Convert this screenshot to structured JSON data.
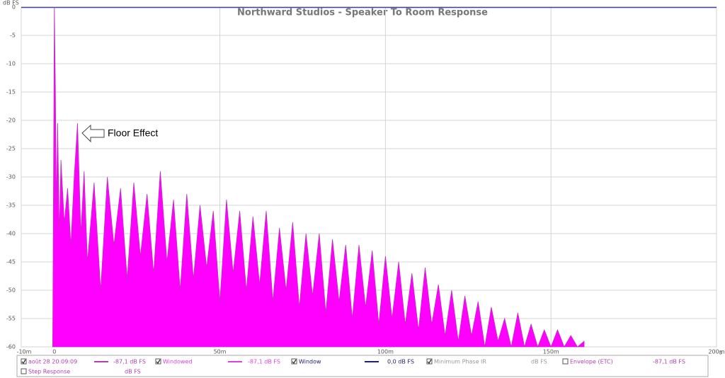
{
  "chart_data": {
    "type": "area",
    "title": "Northward Studios - Speaker To Room Response",
    "y_label": "dB FS",
    "x_unit": "s",
    "annotation": "Floor Effect",
    "color": "#ff00ff",
    "grid": true,
    "xlim": [
      -10,
      200
    ],
    "ylim": [
      -60,
      0
    ],
    "xticks": [
      {
        "value": -10,
        "label": "-10m"
      },
      0,
      {
        "value": 50,
        "label": "50m"
      },
      {
        "value": 100,
        "label": "100m"
      },
      {
        "value": 150,
        "label": "150m"
      },
      {
        "value": 200,
        "label": "200m"
      }
    ],
    "yticks": [
      0,
      -5,
      -10,
      -15,
      -20,
      -25,
      -30,
      -35,
      -40,
      -45,
      -50,
      -55,
      -60
    ],
    "x": [
      -0.5,
      0,
      0.3,
      0.6,
      1,
      1.5,
      2,
      3,
      4,
      5,
      6,
      7,
      8,
      9,
      10,
      12,
      14,
      16,
      18,
      20,
      22,
      24,
      26,
      28,
      30,
      32,
      34,
      36,
      38,
      40,
      42,
      44,
      46,
      48,
      50,
      52,
      54,
      56,
      58,
      60,
      62,
      64,
      66,
      68,
      70,
      72,
      74,
      76,
      78,
      80,
      82,
      84,
      86,
      88,
      90,
      92,
      94,
      96,
      98,
      100,
      102,
      104,
      106,
      108,
      110,
      112,
      114,
      116,
      118,
      120,
      122,
      124,
      126,
      128,
      130,
      132,
      134,
      136,
      138,
      140,
      142,
      144,
      146,
      148,
      150,
      152,
      154,
      156,
      158,
      160
    ],
    "values": [
      -60,
      0,
      -14,
      -35,
      -20.5,
      -40,
      -27,
      -38,
      -32,
      -42,
      -30,
      -20.5,
      -40,
      -29,
      -45,
      -31,
      -50,
      -30,
      -42,
      -32,
      -48,
      -31,
      -44,
      -33,
      -47,
      -29,
      -45,
      -34,
      -50,
      -33,
      -48,
      -35,
      -46,
      -36,
      -52,
      -34,
      -47,
      -36,
      -50,
      -37,
      -49,
      -36,
      -52,
      -39,
      -50,
      -38,
      -53,
      -40,
      -51,
      -40,
      -54,
      -41,
      -52,
      -42,
      -55,
      -42,
      -53,
      -43,
      -56,
      -44,
      -55,
      -45,
      -56,
      -47,
      -57,
      -46,
      -56,
      -49,
      -58,
      -50,
      -59,
      -51,
      -58,
      -52,
      -60,
      -53,
      -59,
      -55,
      -60,
      -54,
      -60,
      -56,
      -60,
      -57,
      -60,
      -57,
      -60,
      -58,
      -60,
      -59
    ],
    "legend_items": [
      {
        "label": "août 28 20:09:09",
        "readout": "-87,1 dB FS",
        "checked": true,
        "color": "#b040b0"
      },
      {
        "label": "Windowed",
        "readout": "-87,1 dB FS",
        "checked": true,
        "color": "#e040e0"
      },
      {
        "label": "Window",
        "readout": "0,0 dB FS",
        "checked": true,
        "color": "#202070"
      },
      {
        "label": "Minimum Phase IR",
        "readout": "dB FS",
        "checked": true,
        "color": "#999999"
      },
      {
        "label": "Envelope (ETC)",
        "readout": "-87,1 dB FS",
        "checked": false,
        "color": "#b040b0"
      },
      {
        "label": "Step Response",
        "readout": "dB FS",
        "checked": false,
        "color": "#b040b0"
      }
    ]
  }
}
